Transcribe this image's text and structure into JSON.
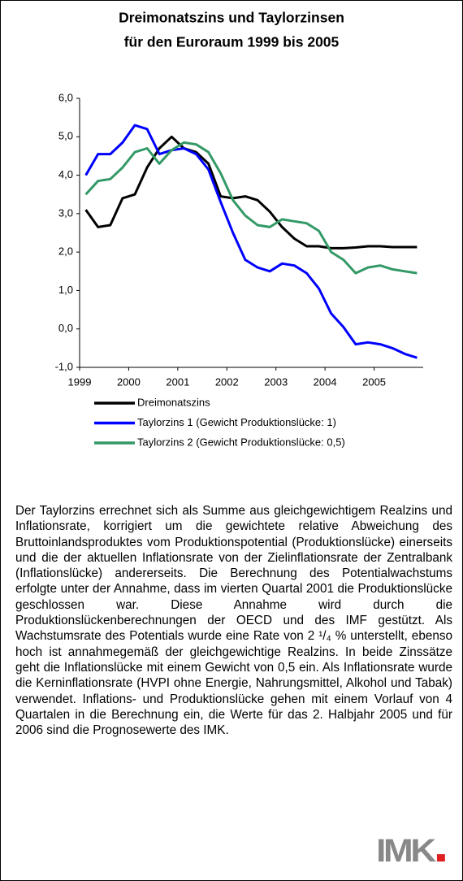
{
  "chart_data": {
    "type": "line",
    "title": [
      "Dreimonatszins und Taylorzinsen",
      "für den Euroraum 1999 bis 2005"
    ],
    "categories": [
      "1999",
      null,
      null,
      null,
      "2000",
      null,
      null,
      null,
      "2001",
      null,
      null,
      null,
      "2002",
      null,
      null,
      null,
      "2003",
      null,
      null,
      null,
      "2004",
      null,
      null,
      null,
      "2005",
      null,
      null,
      null
    ],
    "series": [
      {
        "name": "Dreimonatszins",
        "color": "#000000",
        "values": [
          3.1,
          2.65,
          2.7,
          3.4,
          3.5,
          4.2,
          4.7,
          5.0,
          4.7,
          4.6,
          4.3,
          3.45,
          3.4,
          3.45,
          3.35,
          3.05,
          2.65,
          2.35,
          2.15,
          2.15,
          2.1,
          2.1,
          2.12,
          2.15,
          2.15,
          2.13,
          2.13,
          2.13
        ]
      },
      {
        "name": "Taylorzins 1 (Gewicht Produktionslücke: 1)",
        "color": "#0000ff",
        "values": [
          4.0,
          4.55,
          4.55,
          4.85,
          5.3,
          5.2,
          4.55,
          4.65,
          4.7,
          4.55,
          4.15,
          3.3,
          2.5,
          1.8,
          1.6,
          1.5,
          1.7,
          1.65,
          1.45,
          1.05,
          0.4,
          0.05,
          -0.4,
          -0.35,
          -0.4,
          -0.5,
          -0.65,
          -0.75
        ]
      },
      {
        "name": "Taylorzins 2 (Gewicht Produktionslücke: 0,5)",
        "color": "#339966",
        "values": [
          3.5,
          3.85,
          3.9,
          4.2,
          4.6,
          4.7,
          4.3,
          4.65,
          4.85,
          4.8,
          4.6,
          4.05,
          3.35,
          2.95,
          2.7,
          2.65,
          2.85,
          2.8,
          2.75,
          2.55,
          2.0,
          1.8,
          1.45,
          1.6,
          1.65,
          1.55,
          1.5,
          1.45
        ]
      }
    ],
    "ylim": [
      -1,
      6
    ],
    "yticks": [
      {
        "value": -1,
        "label": "-1,0"
      },
      {
        "value": 0,
        "label": "0,0"
      },
      {
        "value": 1,
        "label": "1,0"
      },
      {
        "value": 2,
        "label": "2,0"
      },
      {
        "value": 3,
        "label": "3,0"
      },
      {
        "value": 4,
        "label": "4,0"
      },
      {
        "value": 5,
        "label": "5,0"
      },
      {
        "value": 6,
        "label": "6,0"
      }
    ],
    "grid": false
  },
  "text": "Der Taylorzins errechnet sich als Summe aus gleichgewichtigem Realzins und Inflationsrate, korrigiert um die gewichtete relative Abweichung des Bruttoinlandsproduktes vom Produktionspotential (Produktionslücke) einerseits und die der aktuellen Inflationsrate von der Zielinflationsrate der Zentralbank (Inflationslücke) andererseits. Die Berechnung des Potentialwachstums erfolgte unter der Annahme, dass im vierten Quartal 2001 die Produktionslücke geschlossen war. Diese Annahme wird durch die Produktionslückenberechnungen der OECD und des IMF gestützt. Als Wachstumsrate des Potentials wurde eine Rate von 2 ¹/₄ % unterstellt, ebenso hoch ist annahmegemäß der gleichgewichtige Realzins. In beide Zinssätze geht die Inflationslücke mit einem Gewicht von 0,5 ein. Als Inflationsrate wurde die Kerninflationsrate (HVPI ohne Energie, Nahrungsmittel, Alkohol und Tabak) verwendet. Inflations- und Produktionslücke gehen mit einem Vorlauf von 4 Quartalen in die Berechnung ein, die Werte für das 2. Halbjahr 2005 und für 2006 sind die Prognosewerte des IMK.",
  "logo": "IMK"
}
